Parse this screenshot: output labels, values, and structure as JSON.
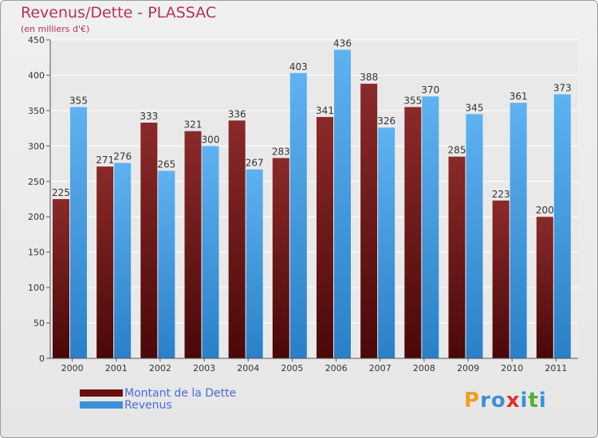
{
  "header": {
    "title": "Revenus/Dette - PLASSAC",
    "subtitle": "(en milliers d'€)"
  },
  "colors": {
    "dette": "#7a1e1e",
    "dette_light": "#9a3535",
    "revenus": "#3a91d8",
    "revenus_light": "#5fb0ee",
    "title": "#b4325a",
    "legend_text": "#4a6be0"
  },
  "chart_data": {
    "type": "bar",
    "categories": [
      "2000",
      "2001",
      "2002",
      "2003",
      "2004",
      "2005",
      "2006",
      "2007",
      "2008",
      "2009",
      "2010",
      "2011"
    ],
    "series": [
      {
        "name": "Montant de la Dette",
        "values": [
          225,
          271,
          333,
          321,
          336,
          283,
          341,
          388,
          355,
          285,
          223,
          200
        ]
      },
      {
        "name": "Revenus",
        "values": [
          355,
          276,
          265,
          300,
          267,
          403,
          436,
          326,
          370,
          345,
          361,
          373
        ]
      }
    ],
    "yticks": [
      0,
      50,
      100,
      150,
      200,
      250,
      300,
      350,
      400,
      450
    ],
    "ylim": [
      0,
      450
    ],
    "grid": true,
    "legend_position": "bottom-left"
  },
  "legend": {
    "items": [
      {
        "label": "Montant de la Dette"
      },
      {
        "label": "Revenus"
      }
    ]
  },
  "logo": {
    "letters": [
      "P",
      "r",
      "o",
      "x",
      "i",
      "t",
      "i"
    ],
    "colors": [
      "#f0a020",
      "#3a91d8",
      "#3a91d8",
      "#e03030",
      "#3a91d8",
      "#50b030",
      "#3a91d8"
    ]
  }
}
